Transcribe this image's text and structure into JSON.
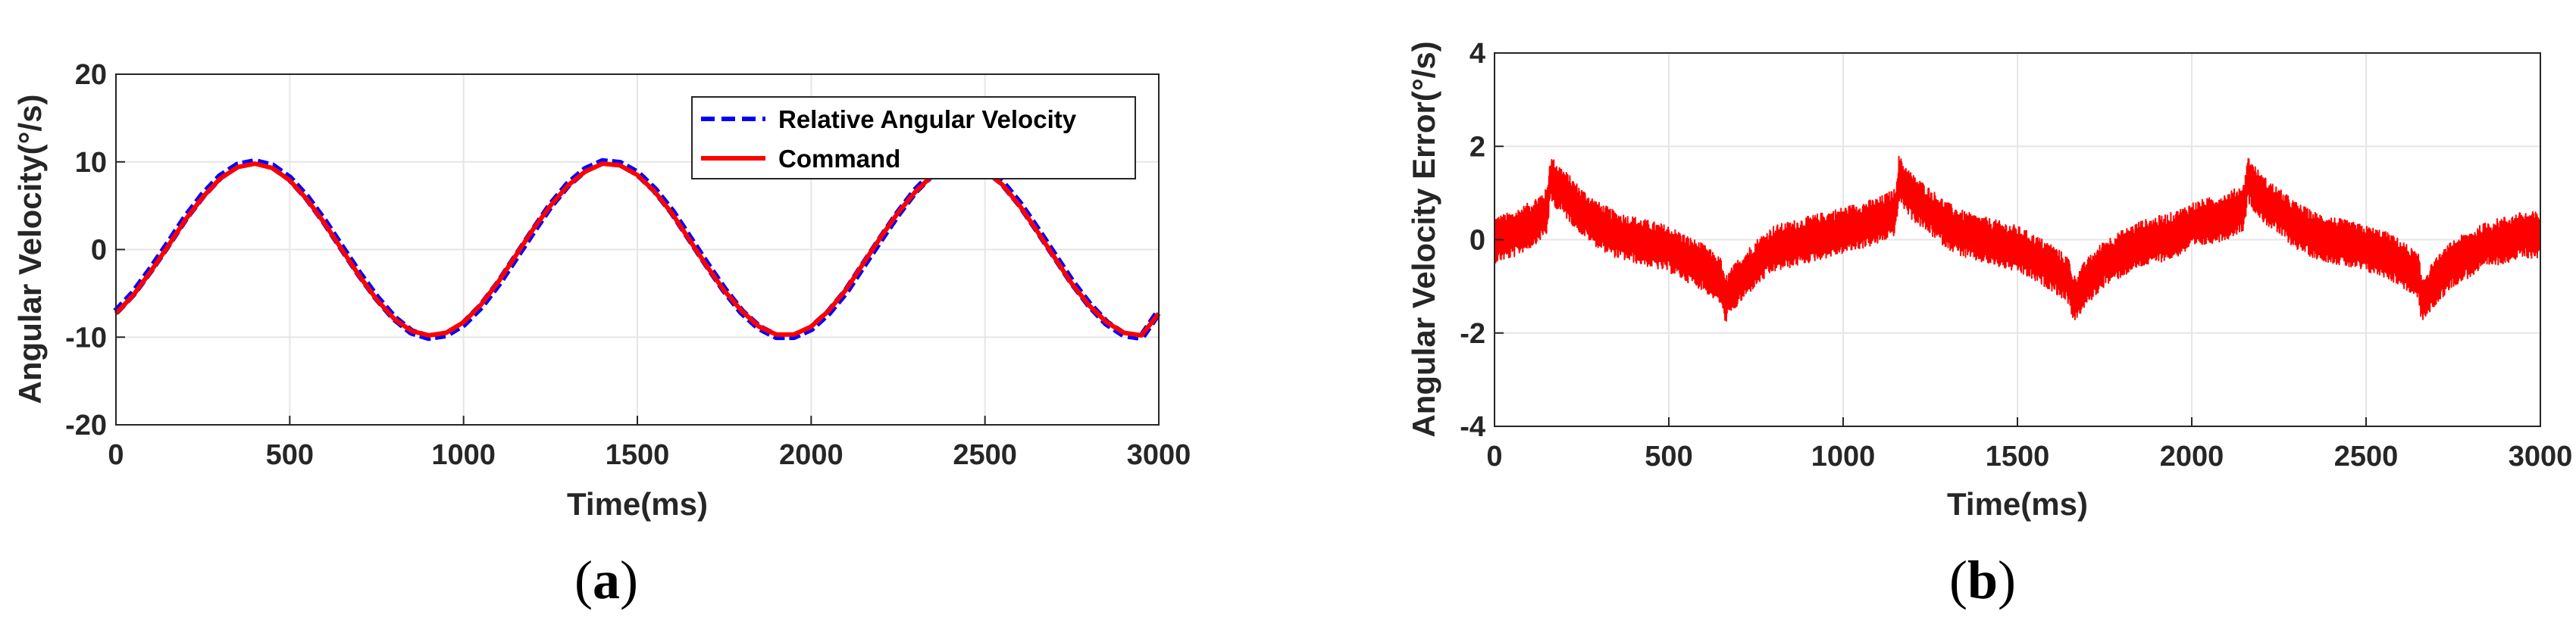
{
  "chart_data": [
    {
      "type": "line",
      "caption": "(a)",
      "caption_letter": "a",
      "xlabel": "Time(ms)",
      "ylabel": "Angular Velocity(°/s)",
      "xlim": [
        0,
        3000
      ],
      "ylim": [
        -20,
        20
      ],
      "xticks": [
        0,
        500,
        1000,
        1500,
        2000,
        2500,
        3000
      ],
      "yticks": [
        -20,
        -10,
        0,
        10,
        20
      ],
      "grid": true,
      "legend_position": "top-right",
      "series": [
        {
          "name": "Relative Angular Velocity",
          "color": "#0000ff",
          "style": "dashed",
          "x": [
            0,
            50,
            100,
            150,
            200,
            250,
            300,
            350,
            400,
            450,
            500,
            550,
            600,
            650,
            700,
            750,
            800,
            850,
            900,
            950,
            1000,
            1050,
            1100,
            1150,
            1200,
            1250,
            1300,
            1350,
            1400,
            1450,
            1500,
            1550,
            1600,
            1650,
            1700,
            1750,
            1800,
            1850,
            1900,
            1950,
            2000,
            2050,
            2100,
            2150,
            2200,
            2250,
            2300,
            2350,
            2400,
            2450,
            2500,
            2550,
            2600,
            2650,
            2700,
            2750,
            2800,
            2850,
            2900,
            2950,
            3000
          ],
          "values": [
            -7.1,
            -5.0,
            -2.3,
            0.6,
            3.6,
            6.2,
            8.3,
            9.6,
            10.0,
            9.5,
            8.1,
            5.9,
            3.2,
            0.2,
            -2.8,
            -5.5,
            -7.8,
            -9.4,
            -10.0,
            -9.7,
            -8.5,
            -6.5,
            -3.9,
            -0.9,
            2.1,
            5.0,
            7.4,
            9.1,
            10.0,
            9.8,
            8.7,
            6.8,
            4.3,
            1.3,
            -1.7,
            -4.6,
            -7.1,
            -8.9,
            -9.9,
            -9.9,
            -9.0,
            -7.2,
            -4.8,
            -1.8,
            1.2,
            4.1,
            6.7,
            8.7,
            9.8,
            10.0,
            9.2,
            7.6,
            5.2,
            2.3,
            -0.7,
            -3.7,
            -6.3,
            -8.4,
            -9.7,
            -10.0,
            -7.1
          ]
        },
        {
          "name": "Command",
          "color": "#ff0000",
          "style": "solid",
          "x": [
            0,
            50,
            100,
            150,
            200,
            250,
            300,
            350,
            400,
            450,
            500,
            550,
            600,
            650,
            700,
            750,
            800,
            850,
            900,
            950,
            1000,
            1050,
            1100,
            1150,
            1200,
            1250,
            1300,
            1350,
            1400,
            1450,
            1500,
            1550,
            1600,
            1650,
            1700,
            1750,
            1800,
            1850,
            1900,
            1950,
            2000,
            2050,
            2100,
            2150,
            2200,
            2250,
            2300,
            2350,
            2400,
            2450,
            2500,
            2550,
            2600,
            2650,
            2700,
            2750,
            2800,
            2850,
            2900,
            2950,
            3000
          ],
          "values": [
            -7.3,
            -5.2,
            -2.5,
            0.4,
            3.4,
            6.0,
            8.1,
            9.4,
            9.8,
            9.3,
            7.9,
            5.7,
            3.0,
            0.0,
            -3.0,
            -5.7,
            -7.9,
            -9.3,
            -9.8,
            -9.5,
            -8.3,
            -6.3,
            -3.7,
            -0.7,
            2.3,
            5.0,
            7.3,
            8.9,
            9.8,
            9.6,
            8.5,
            6.6,
            4.1,
            1.1,
            -1.9,
            -4.7,
            -7.0,
            -8.8,
            -9.7,
            -9.7,
            -8.8,
            -7.0,
            -4.6,
            -1.6,
            1.4,
            4.2,
            6.6,
            8.5,
            9.6,
            9.8,
            9.0,
            7.4,
            5.0,
            2.1,
            -0.9,
            -3.9,
            -6.4,
            -8.3,
            -9.5,
            -9.8,
            -7.3
          ]
        }
      ]
    },
    {
      "type": "line",
      "caption": "(b)",
      "caption_letter": "b",
      "xlabel": "Time(ms)",
      "ylabel": "Angular Velocity Error(°/s)",
      "xlim": [
        0,
        3000
      ],
      "ylim": [
        -4,
        4
      ],
      "xticks": [
        0,
        500,
        1000,
        1500,
        2000,
        2500,
        3000
      ],
      "yticks": [
        -4,
        -2,
        0,
        2,
        4
      ],
      "grid": true,
      "series": [
        {
          "name": "Angular Velocity Error",
          "color": "#ff0000",
          "style": "solid",
          "x": [
            0,
            50,
            100,
            150,
            160,
            200,
            250,
            300,
            350,
            400,
            450,
            500,
            550,
            600,
            650,
            660,
            700,
            750,
            800,
            850,
            900,
            950,
            1000,
            1050,
            1100,
            1150,
            1160,
            1200,
            1250,
            1300,
            1350,
            1400,
            1450,
            1500,
            1550,
            1600,
            1650,
            1660,
            1700,
            1750,
            1800,
            1850,
            1900,
            1950,
            2000,
            2050,
            2100,
            2150,
            2160,
            2200,
            2250,
            2300,
            2350,
            2400,
            2450,
            2500,
            2550,
            2600,
            2650,
            2660,
            2700,
            2750,
            2800,
            2850,
            2900,
            2950,
            3000
          ],
          "values": [
            0.0,
            0.1,
            0.3,
            0.6,
            1.3,
            1.0,
            0.6,
            0.3,
            0.1,
            0.0,
            -0.1,
            -0.2,
            -0.4,
            -0.6,
            -0.9,
            -1.3,
            -0.9,
            -0.5,
            -0.2,
            -0.1,
            0.0,
            0.1,
            0.2,
            0.3,
            0.4,
            0.6,
            1.3,
            0.9,
            0.6,
            0.3,
            0.1,
            0.0,
            -0.1,
            -0.2,
            -0.4,
            -0.6,
            -0.9,
            -1.3,
            -0.9,
            -0.5,
            -0.3,
            -0.1,
            0.0,
            0.1,
            0.3,
            0.4,
            0.5,
            0.7,
            1.3,
            0.9,
            0.6,
            0.3,
            0.1,
            0.0,
            -0.1,
            -0.2,
            -0.3,
            -0.5,
            -0.8,
            -1.3,
            -0.9,
            -0.5,
            -0.3,
            -0.1,
            0.0,
            0.1,
            0.1
          ],
          "noise_amplitude": 0.5
        }
      ]
    }
  ]
}
